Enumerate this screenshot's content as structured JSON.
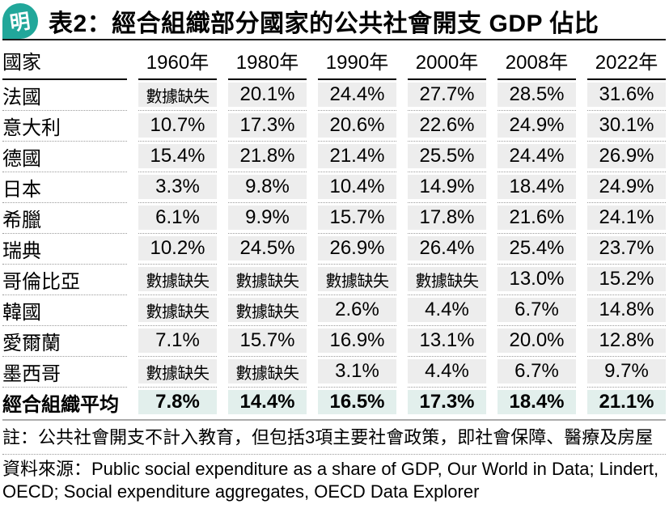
{
  "header": {
    "logo_char": "明",
    "title": "表2：經合組織部分國家的公共社會開支 GDP 佔比"
  },
  "chart_data": {
    "type": "table",
    "title": "表2：經合組織部分國家的公共社會開支 GDP 佔比",
    "missing_label": "數據缺失",
    "columns": [
      "國家",
      "1960年",
      "1980年",
      "1990年",
      "2000年",
      "2008年",
      "2022年"
    ],
    "rows": [
      {
        "country": "法國",
        "values": [
          "數據缺失",
          "20.1%",
          "24.4%",
          "27.7%",
          "28.5%",
          "31.6%"
        ]
      },
      {
        "country": "意大利",
        "values": [
          "10.7%",
          "17.3%",
          "20.6%",
          "22.6%",
          "24.9%",
          "30.1%"
        ]
      },
      {
        "country": "德國",
        "values": [
          "15.4%",
          "21.8%",
          "21.4%",
          "25.5%",
          "24.4%",
          "26.9%"
        ]
      },
      {
        "country": "日本",
        "values": [
          "3.3%",
          "9.8%",
          "10.4%",
          "14.9%",
          "18.4%",
          "24.9%"
        ]
      },
      {
        "country": "希臘",
        "values": [
          "6.1%",
          "9.9%",
          "15.7%",
          "17.8%",
          "21.6%",
          "24.1%"
        ]
      },
      {
        "country": "瑞典",
        "values": [
          "10.2%",
          "24.5%",
          "26.9%",
          "26.4%",
          "25.4%",
          "23.7%"
        ]
      },
      {
        "country": "哥倫比亞",
        "values": [
          "數據缺失",
          "數據缺失",
          "數據缺失",
          "數據缺失",
          "13.0%",
          "15.2%"
        ]
      },
      {
        "country": "韓國",
        "values": [
          "數據缺失",
          "數據缺失",
          "2.6%",
          "4.4%",
          "6.7%",
          "14.8%"
        ]
      },
      {
        "country": "愛爾蘭",
        "values": [
          "7.1%",
          "15.7%",
          "16.9%",
          "13.1%",
          "20.0%",
          "12.8%"
        ]
      },
      {
        "country": "墨西哥",
        "values": [
          "數據缺失",
          "數據缺失",
          "3.1%",
          "4.4%",
          "6.7%",
          "9.7%"
        ]
      },
      {
        "country": "經合組織平均",
        "values": [
          "7.8%",
          "14.4%",
          "16.5%",
          "17.3%",
          "18.4%",
          "21.1%"
        ],
        "highlight": true
      }
    ]
  },
  "footer": {
    "note": "註：公共社會開支不計入教育，但包括3項主要社會政策，即社會保障、醫療及房屋",
    "source": "資料來源：Public social expenditure as a share of GDP, Our World in Data; Lindert, OECD; Social expenditure aggregates, OECD Data Explorer"
  },
  "colors": {
    "brand_teal": "#21a79a",
    "cell_stripe_gray": "#ededed",
    "highlight_mint": "#e2efec",
    "rule_gray": "#ababab",
    "dotted_gray": "#9b9b9b"
  }
}
